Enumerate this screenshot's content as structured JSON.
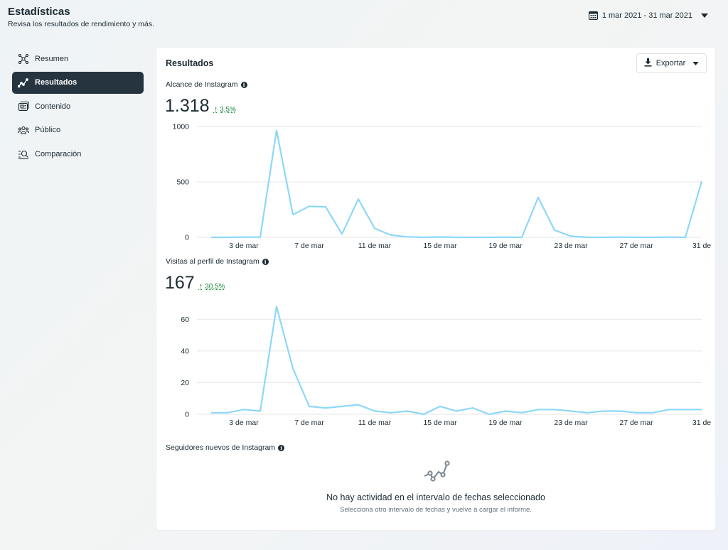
{
  "header": {
    "title": "Estadísticas",
    "subtitle": "Revisa los resultados de rendimiento y más.",
    "date_range": "1 mar 2021 - 31 mar 2021",
    "calendar_icon": "calendar-icon",
    "dropdown_icon": "caret-down-icon"
  },
  "sidebar": {
    "items": [
      {
        "label": "Resumen",
        "icon": "overview-icon",
        "active": false
      },
      {
        "label": "Resultados",
        "icon": "results-chart-icon",
        "active": true
      },
      {
        "label": "Contenido",
        "icon": "content-icon",
        "active": false
      },
      {
        "label": "Público",
        "icon": "audience-icon",
        "active": false
      },
      {
        "label": "Comparación",
        "icon": "compare-icon",
        "active": false
      }
    ]
  },
  "main": {
    "title": "Resultados",
    "export_label": "Exportar",
    "metrics": [
      {
        "label": "Alcance de Instagram",
        "value": "1.318",
        "change": "3,5%"
      },
      {
        "label": "Visitas al perfil de Instagram",
        "value": "167",
        "change": "30,5%"
      }
    ],
    "followers": {
      "label": "Seguidores nuevos de Instagram",
      "empty_title": "No hay actividad en el intervalo de fechas seleccionado",
      "empty_subtitle": "Selecciona otro intervalo de fechas y vuelve a cargar el informe."
    }
  },
  "colors": {
    "line": "#8dd8f8",
    "active_bg": "#263440",
    "positive": "#19893b",
    "grid": "#e4e6e8"
  },
  "chart_data": [
    {
      "type": "line",
      "title": "Alcance de Instagram",
      "x": [
        "1 mar",
        "2 mar",
        "3 mar",
        "4 mar",
        "5 mar",
        "6 mar",
        "7 mar",
        "8 mar",
        "9 mar",
        "10 mar",
        "11 mar",
        "12 mar",
        "13 mar",
        "14 mar",
        "15 mar",
        "16 mar",
        "17 mar",
        "18 mar",
        "19 mar",
        "20 mar",
        "21 mar",
        "22 mar",
        "23 mar",
        "24 mar",
        "25 mar",
        "26 mar",
        "27 mar",
        "28 mar",
        "29 mar",
        "30 mar",
        "31 mar"
      ],
      "x_tick_labels": [
        "3 de mar",
        "7 de mar",
        "11 de mar",
        "15 de mar",
        "19 de mar",
        "23 de mar",
        "27 de mar",
        "31 de"
      ],
      "x_tick_index": [
        2,
        6,
        10,
        14,
        18,
        22,
        26,
        30
      ],
      "values": [
        0,
        0,
        2,
        2,
        965,
        205,
        280,
        275,
        30,
        345,
        80,
        20,
        5,
        0,
        3,
        0,
        0,
        0,
        2,
        0,
        360,
        65,
        10,
        0,
        0,
        2,
        0,
        0,
        2,
        0,
        505
      ],
      "y_ticks": [
        0,
        500,
        1000
      ],
      "ylim": [
        0,
        1000
      ],
      "grid": true
    },
    {
      "type": "line",
      "title": "Visitas al perfil de Instagram",
      "x": [
        "1 mar",
        "2 mar",
        "3 mar",
        "4 mar",
        "5 mar",
        "6 mar",
        "7 mar",
        "8 mar",
        "9 mar",
        "10 mar",
        "11 mar",
        "12 mar",
        "13 mar",
        "14 mar",
        "15 mar",
        "16 mar",
        "17 mar",
        "18 mar",
        "19 mar",
        "20 mar",
        "21 mar",
        "22 mar",
        "23 mar",
        "24 mar",
        "25 mar",
        "26 mar",
        "27 mar",
        "28 mar",
        "29 mar",
        "30 mar",
        "31 mar"
      ],
      "x_tick_labels": [
        "3 de mar",
        "7 de mar",
        "11 de mar",
        "15 de mar",
        "19 de mar",
        "23 de mar",
        "27 de mar",
        "31 de"
      ],
      "x_tick_index": [
        2,
        6,
        10,
        14,
        18,
        22,
        26,
        30
      ],
      "values": [
        1,
        1,
        3,
        2,
        68,
        29,
        5,
        4,
        5,
        6,
        2,
        1,
        2,
        0,
        5,
        2,
        4,
        0,
        2,
        1,
        3,
        3,
        2,
        1,
        2,
        2,
        1,
        1,
        3,
        3,
        3
      ],
      "y_ticks": [
        0,
        20,
        40,
        60
      ],
      "ylim": [
        0,
        70
      ],
      "grid": true
    }
  ]
}
